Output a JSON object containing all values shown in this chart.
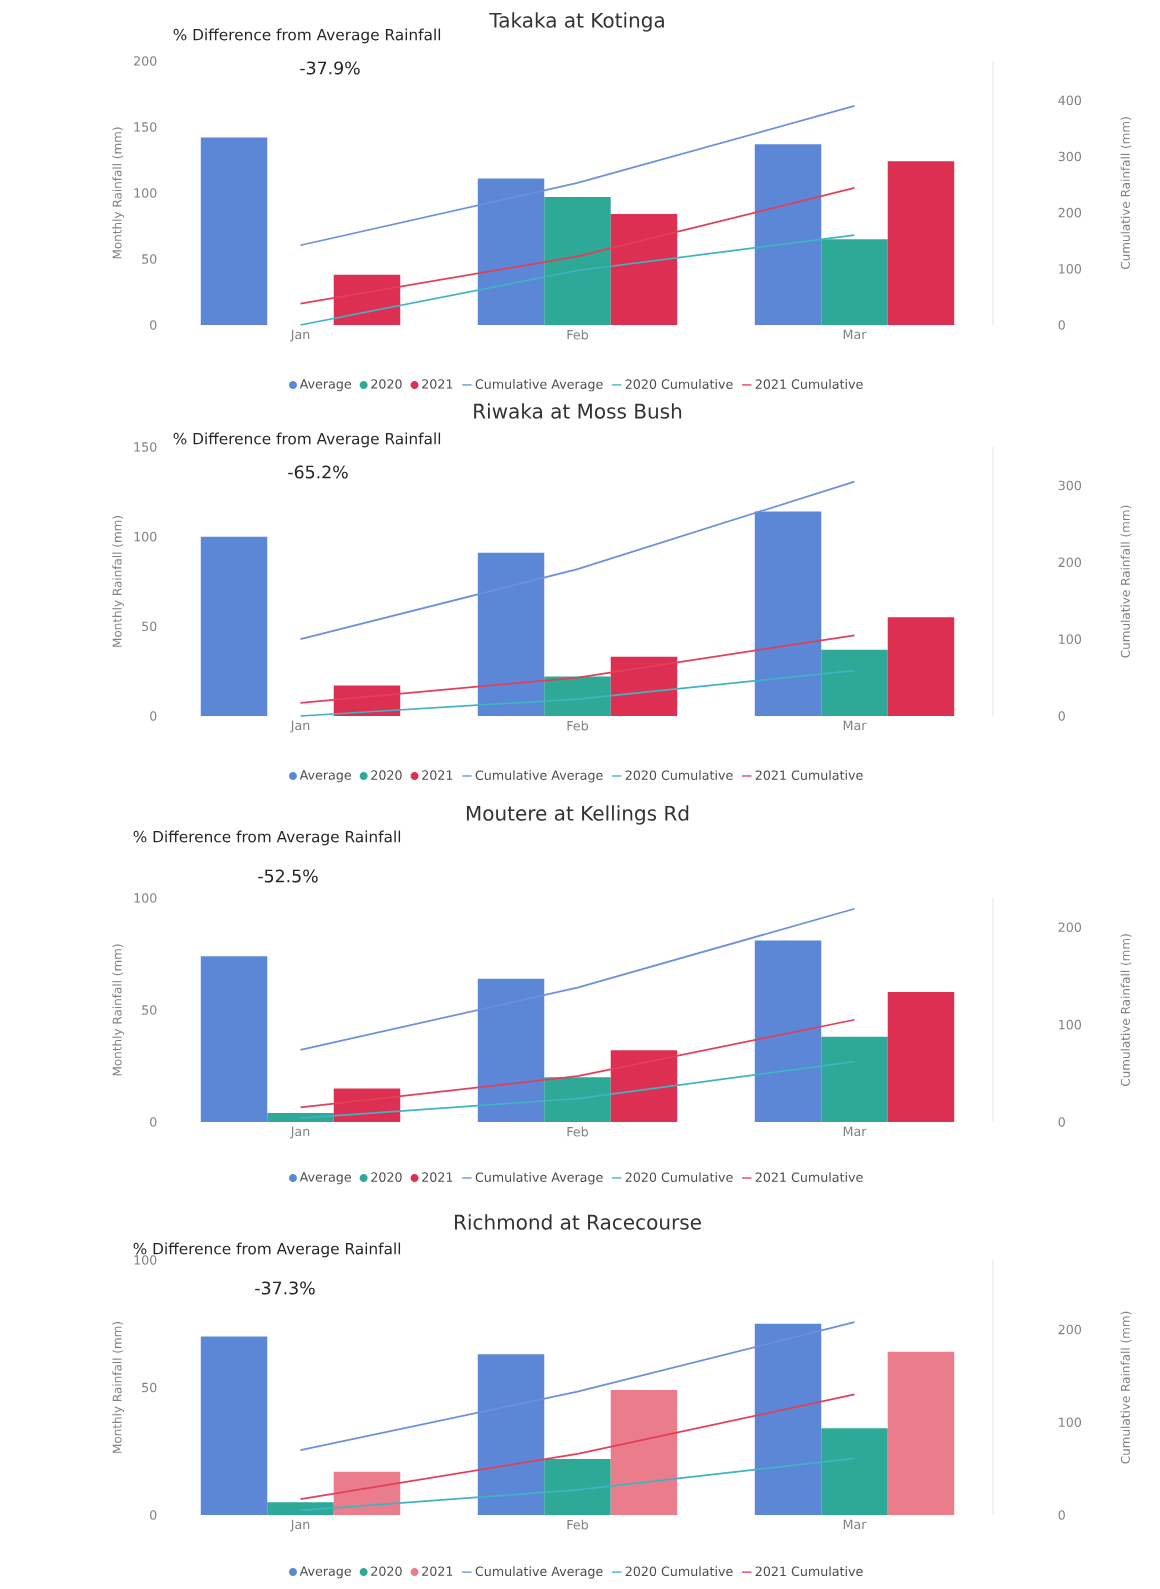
{
  "chart_data": [
    {
      "type": "bar",
      "title": "Takaka at Kotinga",
      "categories": [
        "Jan",
        "Feb",
        "Mar"
      ],
      "ylabel": "Monthly Rainfall (mm)",
      "y2label": "Cumulative Rainfall (mm)",
      "ylim": [
        0,
        200
      ],
      "yticks": [
        0,
        50,
        100,
        150,
        200
      ],
      "y2lim": [
        0,
        470
      ],
      "y2ticks": [
        0,
        100,
        200,
        300,
        400
      ],
      "annotations": [
        "% Difference from Average Rainfall",
        "-37.9%"
      ],
      "legend": "bottom",
      "series": [
        {
          "name": "Average",
          "color": "#5b87d6",
          "values": [
            142,
            111,
            137
          ]
        },
        {
          "name": "2020",
          "color": "#2ea897",
          "values": [
            0,
            97,
            65
          ]
        },
        {
          "name": "2021",
          "color": "#dc2f52",
          "values": [
            38,
            84,
            124
          ]
        },
        {
          "name": "Cumulative Average",
          "type": "line",
          "axis": "y2",
          "color": "#6f8fdc",
          "values": [
            142,
            253,
            390
          ]
        },
        {
          "name": "2020 Cumulative",
          "type": "line",
          "axis": "y2",
          "color": "#3fb3c0",
          "values": [
            0,
            97,
            160
          ]
        },
        {
          "name": "2021 Cumulative",
          "type": "line",
          "axis": "y2",
          "color": "#e0405a",
          "values": [
            38,
            122,
            244
          ]
        }
      ]
    },
    {
      "type": "bar",
      "title": "Riwaka at Moss Bush",
      "categories": [
        "Jan",
        "Feb",
        "Mar"
      ],
      "ylabel": "Monthly Rainfall (mm)",
      "y2label": "Cumulative Rainfall (mm)",
      "ylim": [
        0,
        150
      ],
      "yticks": [
        0,
        50,
        100,
        150
      ],
      "y2lim": [
        0,
        350
      ],
      "y2ticks": [
        0,
        100,
        200,
        300
      ],
      "annotations": [
        "% Difference from Average Rainfall",
        "-65.2%"
      ],
      "legend": "bottom",
      "series": [
        {
          "name": "Average",
          "color": "#5b87d6",
          "values": [
            100,
            91,
            114
          ]
        },
        {
          "name": "2020",
          "color": "#2ea897",
          "values": [
            0,
            22,
            37
          ]
        },
        {
          "name": "2021",
          "color": "#dc2f52",
          "values": [
            17,
            33,
            55
          ]
        },
        {
          "name": "Cumulative Average",
          "type": "line",
          "axis": "y2",
          "color": "#6f8fdc",
          "values": [
            100,
            191,
            305
          ]
        },
        {
          "name": "2020 Cumulative",
          "type": "line",
          "axis": "y2",
          "color": "#3fb3c0",
          "values": [
            0,
            22,
            59
          ]
        },
        {
          "name": "2021 Cumulative",
          "type": "line",
          "axis": "y2",
          "color": "#e0405a",
          "values": [
            17,
            50,
            105
          ]
        }
      ]
    },
    {
      "type": "bar",
      "title": "Moutere at Kellings Rd",
      "categories": [
        "Jan",
        "Feb",
        "Mar"
      ],
      "ylabel": "Monthly Rainfall (mm)",
      "y2label": "Cumulative Rainfall (mm)",
      "ylim": [
        0,
        100
      ],
      "yticks": [
        0,
        50,
        100
      ],
      "y2lim": [
        0,
        230
      ],
      "y2ticks": [
        0,
        100,
        200
      ],
      "annotations": [
        "% Difference from Average Rainfall",
        "-52.5%"
      ],
      "legend": "bottom",
      "series": [
        {
          "name": "Average",
          "color": "#5b87d6",
          "values": [
            74,
            64,
            81
          ]
        },
        {
          "name": "2020",
          "color": "#2ea897",
          "values": [
            4,
            20,
            38
          ]
        },
        {
          "name": "2021",
          "color": "#dc2f52",
          "values": [
            15,
            32,
            58
          ]
        },
        {
          "name": "Cumulative Average",
          "type": "line",
          "axis": "y2",
          "color": "#6f8fdc",
          "values": [
            74,
            138,
            219
          ]
        },
        {
          "name": "2020 Cumulative",
          "type": "line",
          "axis": "y2",
          "color": "#3fb3c0",
          "values": [
            4,
            24,
            62
          ]
        },
        {
          "name": "2021 Cumulative",
          "type": "line",
          "axis": "y2",
          "color": "#e0405a",
          "values": [
            15,
            47,
            105
          ]
        }
      ]
    },
    {
      "type": "bar",
      "title": "Richmond at Racecourse",
      "categories": [
        "Jan",
        "Feb",
        "Mar"
      ],
      "ylabel": "Monthly Rainfall (mm)",
      "y2label": "Cumulative Rainfall (mm)",
      "ylim": [
        0,
        100
      ],
      "yticks": [
        0,
        50,
        100
      ],
      "y2lim": [
        0,
        275
      ],
      "y2ticks": [
        0,
        100,
        200
      ],
      "annotations": [
        "% Difference from Average Rainfall",
        "-37.3%"
      ],
      "legend": "bottom",
      "series": [
        {
          "name": "Average",
          "color": "#5b87d6",
          "values": [
            70,
            63,
            75
          ]
        },
        {
          "name": "2020",
          "color": "#2ea897",
          "values": [
            5,
            22,
            34
          ]
        },
        {
          "name": "2021",
          "color": "#eb7c8c",
          "values": [
            17,
            49,
            64
          ]
        },
        {
          "name": "Cumulative Average",
          "type": "line",
          "axis": "y2",
          "color": "#6f8fdc",
          "values": [
            70,
            133,
            208
          ]
        },
        {
          "name": "2020 Cumulative",
          "type": "line",
          "axis": "y2",
          "color": "#3fb3c0",
          "values": [
            5,
            27,
            61
          ]
        },
        {
          "name": "2021 Cumulative",
          "type": "line",
          "axis": "y2",
          "color": "#e0405a",
          "values": [
            17,
            66,
            130
          ]
        }
      ]
    }
  ]
}
